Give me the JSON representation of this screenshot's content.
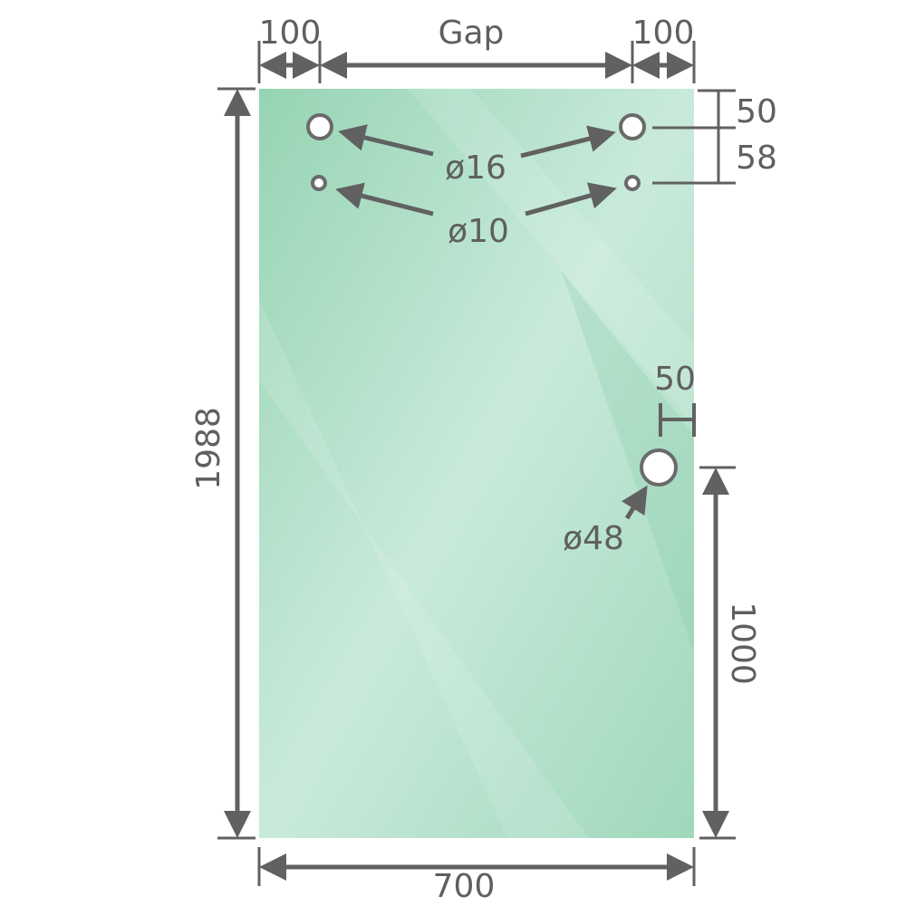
{
  "colors": {
    "glass": "#a8dcc0",
    "glass_light": "#cbebdb",
    "line": "#616161",
    "text": "#5f5f5f"
  },
  "labels": {
    "top_left_offset": "100",
    "gap": "Gap",
    "top_right_offset": "100",
    "top_hole_offset": "50",
    "hole_spacing": "58",
    "height": "1988",
    "width": "700",
    "handle_offset": "50",
    "handle_height": "1000",
    "hole_16": "ø16",
    "hole_10": "ø10",
    "hole_48": "ø48"
  }
}
